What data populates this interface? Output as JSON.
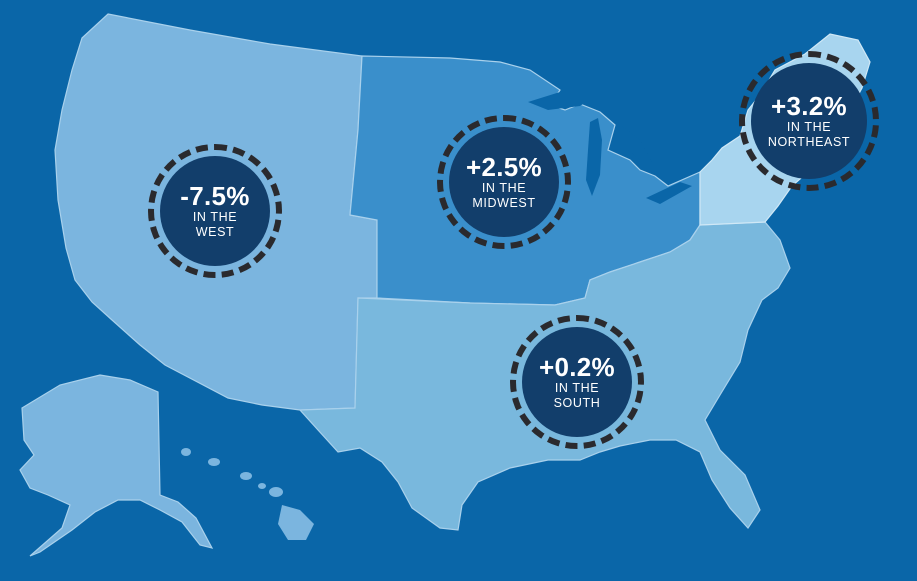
{
  "colors": {
    "background": "#0a66a8",
    "west": "#7bb5df",
    "midwest": "#3a8fcb",
    "south": "#79b8dd",
    "northeast": "#a8d5ef",
    "badge_fill": "#123e6b",
    "badge_ring": "#2a2a2e",
    "badge_text": "#ffffff"
  },
  "regions": [
    {
      "id": "west",
      "value": "-7.5%",
      "line1": "IN THE",
      "line2": "WEST"
    },
    {
      "id": "midwest",
      "value": "+2.5%",
      "line1": "IN THE",
      "line2": "MIDWEST"
    },
    {
      "id": "northeast",
      "value": "+3.2%",
      "line1": "IN THE",
      "line2": "NORTHEAST"
    },
    {
      "id": "south",
      "value": "+0.2%",
      "line1": "IN THE",
      "line2": "SOUTH"
    }
  ]
}
